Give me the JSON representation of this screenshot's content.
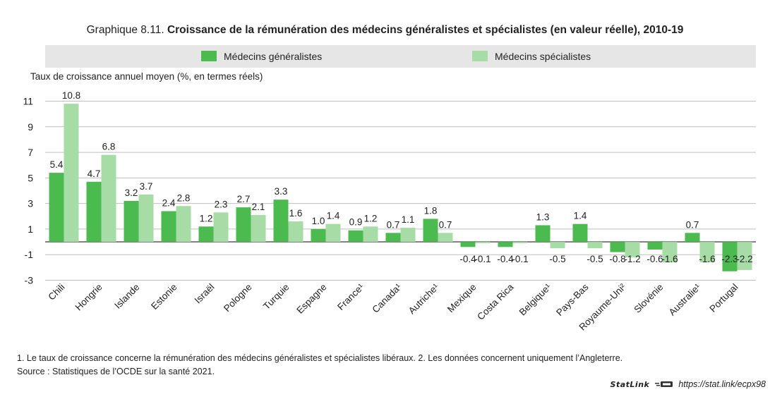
{
  "title": {
    "prefix": "Graphique 8.11.",
    "main": "Croissance de la rémunération des médecins généralistes et spécialistes (en valeur réelle), 2010-19"
  },
  "colors": {
    "series1": "#4cbb4f",
    "series2": "#a8dca6",
    "legend_bg": "#e6e6e6",
    "grid": "#bfbfbf",
    "axis": "#222222"
  },
  "chart_data": {
    "type": "bar",
    "ylabel": "Taux de croissance annuel moyen (%, en termes réels)",
    "ylim": [
      -3,
      12
    ],
    "yticks": [
      -3,
      -1,
      1,
      3,
      5,
      7,
      9,
      11
    ],
    "grid": true,
    "legend_position": "top",
    "categories": [
      "Chili",
      "Hongrie",
      "Islande",
      "Estonie",
      "Israël",
      "Pologne",
      "Turquie",
      "Espagne",
      "France¹",
      "Canada¹",
      "Autriche¹",
      "Mexique",
      "Costa Rica",
      "Belgique¹",
      "Pays-Bas",
      "Royaume-Uni²",
      "Slovénie",
      "Australie¹",
      "Portugal"
    ],
    "series": [
      {
        "name": "Médecins généralistes",
        "values": [
          5.4,
          4.7,
          3.2,
          2.4,
          1.2,
          2.7,
          3.3,
          1.0,
          0.9,
          0.7,
          1.8,
          -0.4,
          -0.4,
          1.3,
          1.4,
          -0.8,
          -0.6,
          0.7,
          -2.3
        ]
      },
      {
        "name": "Médecins spécialistes",
        "values": [
          10.8,
          6.8,
          3.7,
          2.8,
          2.3,
          2.1,
          1.6,
          1.4,
          1.2,
          1.1,
          0.7,
          -0.1,
          -0.1,
          -0.5,
          -0.5,
          -1.2,
          -1.6,
          -1.6,
          -2.2
        ]
      }
    ]
  },
  "notes": {
    "line1": "1. Le taux de croissance concerne la rémunération des médecins généralistes et spécialistes libéraux. 2. Les données concernent uniquement l’Angleterre.",
    "line2": "Source : Statistiques de l’OCDE sur la santé 2021."
  },
  "statlink": {
    "brand": "StatLink",
    "url": "https://stat.link/ecpx98"
  }
}
